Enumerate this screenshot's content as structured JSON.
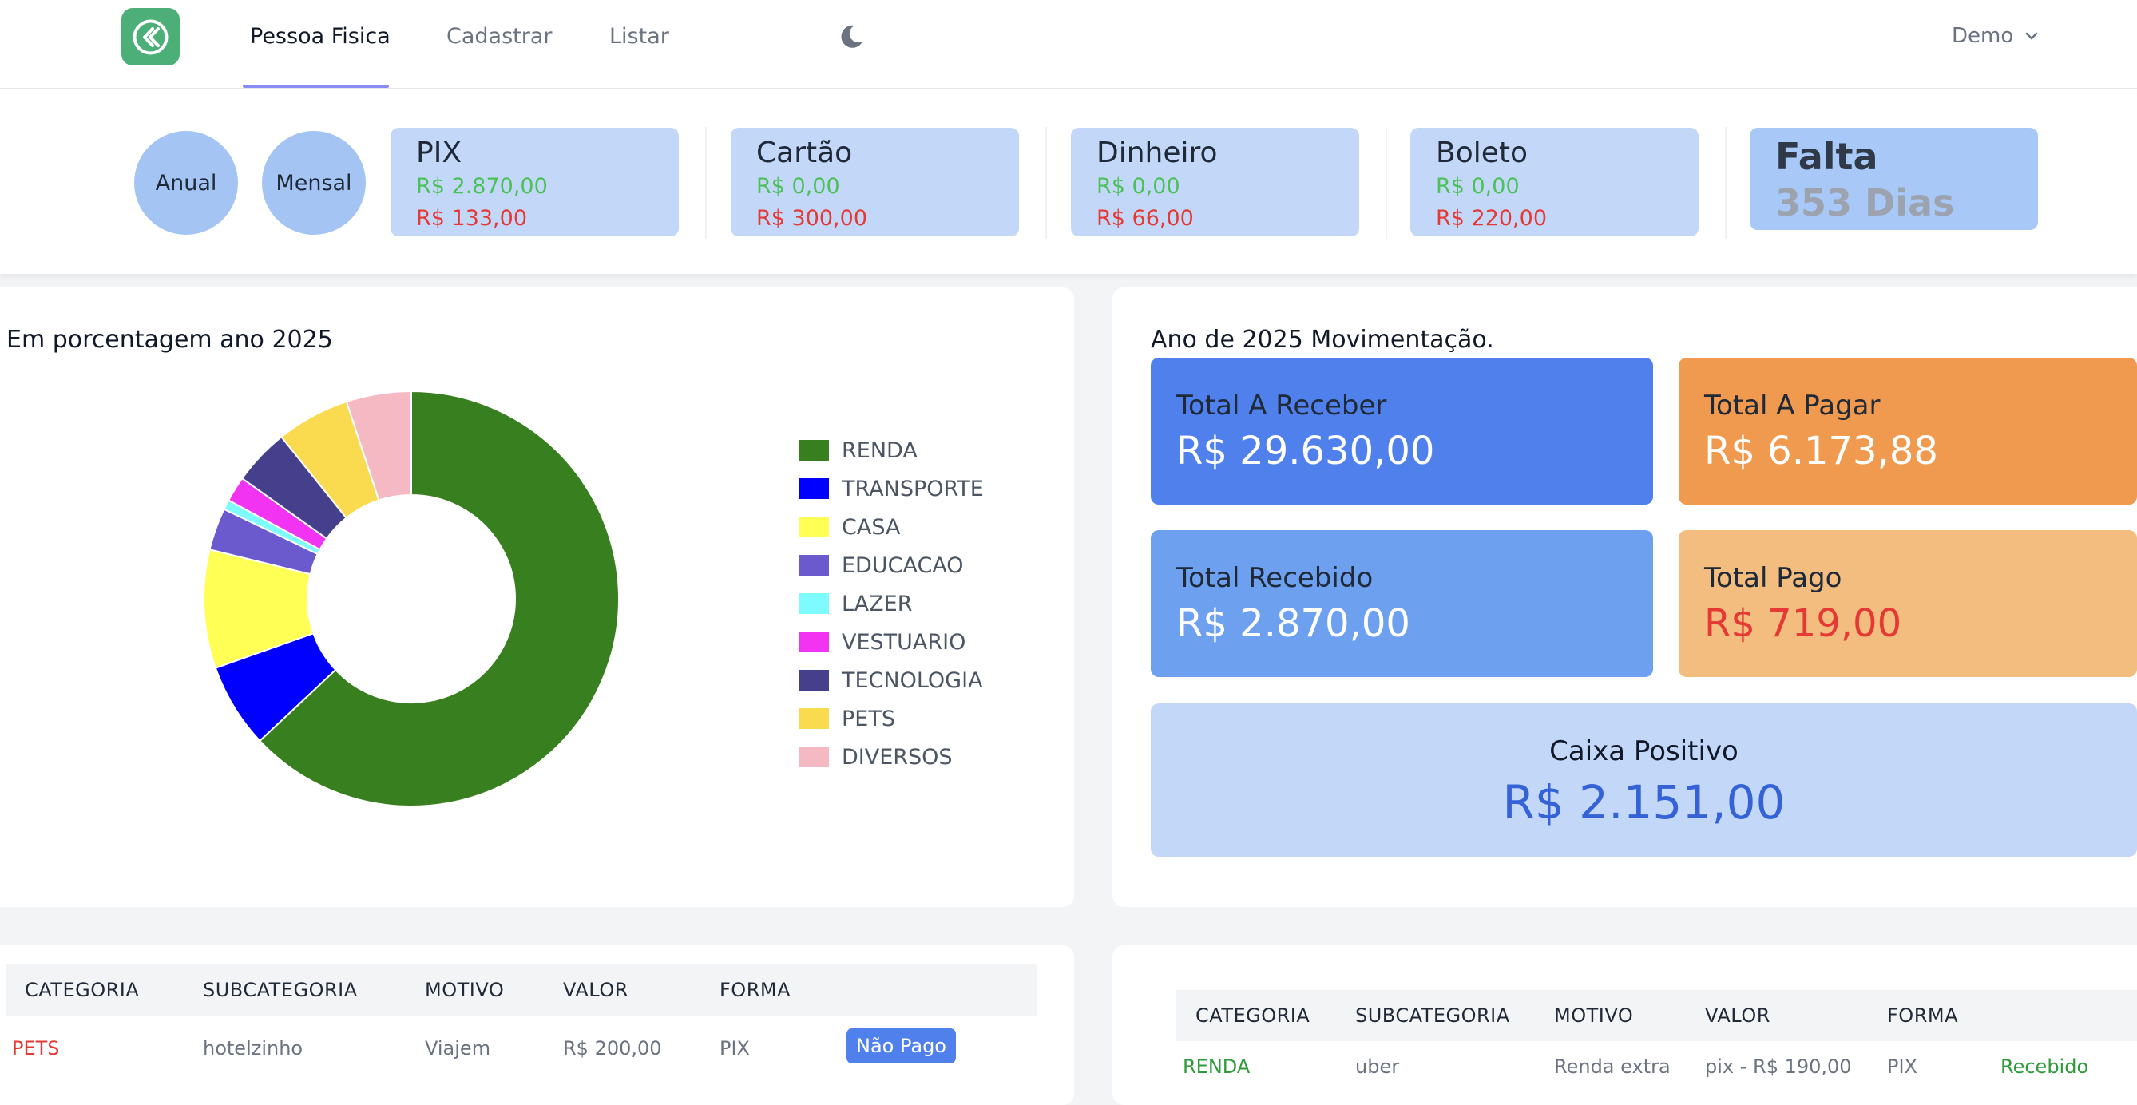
{
  "nav": {
    "tabs": [
      "Pessoa Fisica",
      "Cadastrar",
      "Listar"
    ],
    "user": "Demo"
  },
  "summary": {
    "anual_label": "Anual",
    "mensal_label": "Mensal",
    "cards": [
      {
        "title": "PIX",
        "green": "R$ 2.870,00",
        "red": "R$ 133,00"
      },
      {
        "title": "Cartão",
        "green": "R$ 0,00",
        "red": "R$ 300,00"
      },
      {
        "title": "Dinheiro",
        "green": "R$ 0,00",
        "red": "R$ 66,00"
      },
      {
        "title": "Boleto",
        "green": "R$ 0,00",
        "red": "R$ 220,00"
      }
    ],
    "falta": {
      "title": "Falta",
      "value": "353 Dias"
    }
  },
  "pie_panel": {
    "title": "Em porcentagem ano 2025"
  },
  "chart_data": {
    "type": "pie",
    "donut": true,
    "categories": [
      "RENDA",
      "TRANSPORTE",
      "CASA",
      "EDUCACAO",
      "LAZER",
      "VESTUARIO",
      "TECNOLOGIA",
      "PETS",
      "DIVERSOS"
    ],
    "values": [
      2870,
      300,
      420,
      150,
      35,
      90,
      200,
      260,
      230
    ],
    "colors": [
      "#38801f",
      "#0000ff",
      "#ffff55",
      "#6a5acd",
      "#7dfbff",
      "#f233f2",
      "#463f8c",
      "#fada4f",
      "#f5b9c4"
    ],
    "legend": "right"
  },
  "movement": {
    "title": "Ano de 2025 Movimentação.",
    "receber": {
      "label": "Total A Receber",
      "value": "R$ 29.630,00"
    },
    "pagar": {
      "label": "Total A Pagar",
      "value": "R$ 6.173,88"
    },
    "recebido": {
      "label": "Total Recebido",
      "value": "R$ 2.870,00"
    },
    "pago": {
      "label": "Total Pago",
      "value": "R$ 719,00"
    },
    "caixa": {
      "label": "Caixa Positivo",
      "value": "R$ 2.151,00"
    }
  },
  "colors": {
    "receber": "#4f80ec",
    "pagar": "#ef9a4e",
    "recebido": "#6ea0f0",
    "pago": "#f2bd7e",
    "green": "#4cc15a",
    "red": "#e53935"
  },
  "table_left": {
    "headers": [
      "CATEGORIA",
      "SUBCATEGORIA",
      "MOTIVO",
      "VALOR",
      "FORMA"
    ],
    "rows": [
      {
        "categoria": "PETS",
        "subcategoria": "hotelzinho",
        "motivo": "Viajem",
        "valor": "R$ 200,00",
        "forma": "PIX",
        "status": "Não Pago"
      }
    ]
  },
  "table_right": {
    "headers": [
      "CATEGORIA",
      "SUBCATEGORIA",
      "MOTIVO",
      "VALOR",
      "FORMA"
    ],
    "rows": [
      {
        "categoria": "RENDA",
        "subcategoria": "uber",
        "motivo": "Renda extra",
        "valor": "pix - R$ 190,00",
        "forma": "PIX",
        "status": "Recebido"
      }
    ]
  }
}
